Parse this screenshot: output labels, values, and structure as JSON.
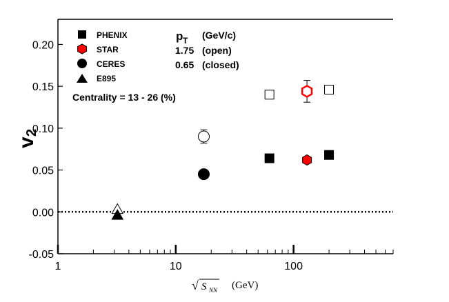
{
  "chart_data": {
    "type": "scatter",
    "xscale": "log",
    "xlim": [
      1,
      700
    ],
    "ylim": [
      -0.05,
      0.23
    ],
    "xticks": [
      1,
      10,
      100
    ],
    "xtick_labels": [
      "1",
      "10",
      "100"
    ],
    "yticks": [
      -0.05,
      0.0,
      0.05,
      0.1,
      0.15,
      0.2
    ],
    "ytick_labels": [
      "-0.05",
      "0.00",
      "0.05",
      "0.10",
      "0.15",
      "0.20"
    ],
    "ylabel": "v",
    "ylabel_sub": "2",
    "xlabel": {
      "sqrt_symbol": "√",
      "s": "S",
      "sub": "NN",
      "unit": "(GeV)"
    },
    "zero_line": {
      "y": 0.0,
      "style": "dotted"
    },
    "annotations": {
      "centrality": "Centrality = 13 - 26 (%)",
      "pt_label": "p",
      "pt_sub": "T",
      "pt_unit": "(GeV/c)",
      "open_value": "1.75",
      "open_text": "(open)",
      "closed_value": "0.65",
      "closed_text": "(closed)"
    },
    "legend": [
      {
        "name": "PHENIX",
        "marker": "square",
        "color": "#000000"
      },
      {
        "name": "STAR",
        "marker": "hexagon",
        "color": "#ff0000"
      },
      {
        "name": "CERES",
        "marker": "circle",
        "color": "#000000"
      },
      {
        "name": "E895",
        "marker": "triangle",
        "color": "#000000"
      }
    ],
    "series": [
      {
        "name": "PHENIX",
        "marker": "square",
        "points": [
          {
            "x": 62.4,
            "y": 0.14,
            "filled": false
          },
          {
            "x": 200,
            "y": 0.146,
            "filled": false
          },
          {
            "x": 62.4,
            "y": 0.064,
            "filled": true
          },
          {
            "x": 200,
            "y": 0.068,
            "filled": true
          }
        ]
      },
      {
        "name": "STAR",
        "marker": "hexagon",
        "points": [
          {
            "x": 130,
            "y": 0.144,
            "filled": false,
            "err": 0.013
          },
          {
            "x": 130,
            "y": 0.062,
            "filled": true
          }
        ]
      },
      {
        "name": "CERES",
        "marker": "circle",
        "points": [
          {
            "x": 17.3,
            "y": 0.09,
            "filled": false,
            "err": 0.008
          },
          {
            "x": 17.3,
            "y": 0.045,
            "filled": true
          }
        ]
      },
      {
        "name": "E895",
        "marker": "triangle",
        "points": [
          {
            "x": 3.2,
            "y": 0.003,
            "filled": false
          },
          {
            "x": 3.2,
            "y": -0.004,
            "filled": true
          }
        ]
      }
    ]
  }
}
